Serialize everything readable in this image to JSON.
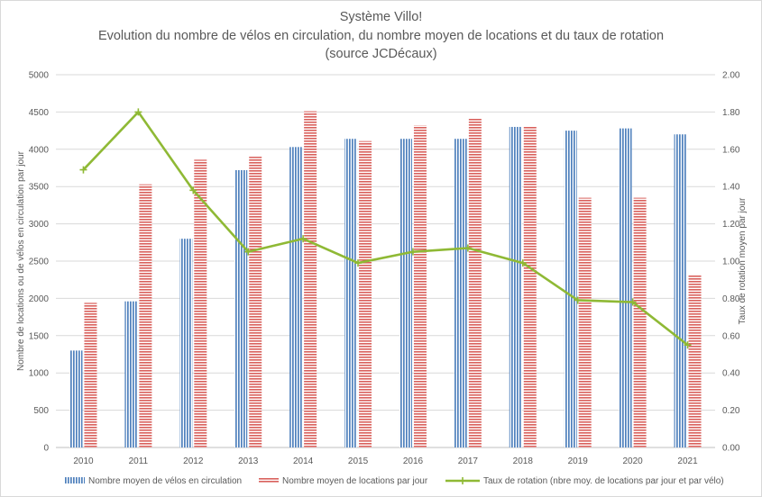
{
  "chart_data": {
    "type": "bar",
    "title_lines": [
      "Système Villo!",
      "Evolution du nombre de vélos en circulation, du nombre moyen de locations et du taux de rotation",
      "(source JCDécaux)"
    ],
    "categories": [
      "2010",
      "2011",
      "2012",
      "2013",
      "2014",
      "2015",
      "2016",
      "2017",
      "2018",
      "2019",
      "2020",
      "2021"
    ],
    "series": [
      {
        "name": "Nombre moyen de vélos en circulation",
        "type": "bar",
        "axis": "left",
        "color": "#4f81bd",
        "values": [
          1300,
          1960,
          2800,
          3720,
          4030,
          4140,
          4140,
          4140,
          4300,
          4250,
          4280,
          4200
        ]
      },
      {
        "name": "Nombre moyen de locations par jour",
        "type": "bar",
        "axis": "left",
        "color": "#c0504d",
        "values": [
          1940,
          3530,
          3860,
          3900,
          4510,
          4110,
          4320,
          4420,
          4300,
          3350,
          3350,
          2320
        ]
      },
      {
        "name": "Taux de rotation (nbre moy. de locations par jour et par vélo)",
        "type": "line",
        "axis": "right",
        "color": "#8fb935",
        "values": [
          1.49,
          1.8,
          1.38,
          1.05,
          1.12,
          0.99,
          1.05,
          1.07,
          0.99,
          0.79,
          0.78,
          0.55
        ]
      }
    ],
    "ylabel": "Nombre de locations ou de vélos en circulation par jour",
    "y2label": "Taux de rotation moyen par jour",
    "ylim": [
      0,
      5000
    ],
    "y2lim": [
      0,
      2
    ],
    "yticks": [
      "0",
      "500",
      "1000",
      "1500",
      "2000",
      "2500",
      "3000",
      "3500",
      "4000",
      "4500",
      "5000"
    ],
    "y2ticks": [
      "0.00",
      "0.20",
      "0.40",
      "0.60",
      "0.80",
      "1.00",
      "1.20",
      "1.40",
      "1.60",
      "1.80",
      "2.00"
    ],
    "grid": true,
    "legend_position": "bottom"
  }
}
